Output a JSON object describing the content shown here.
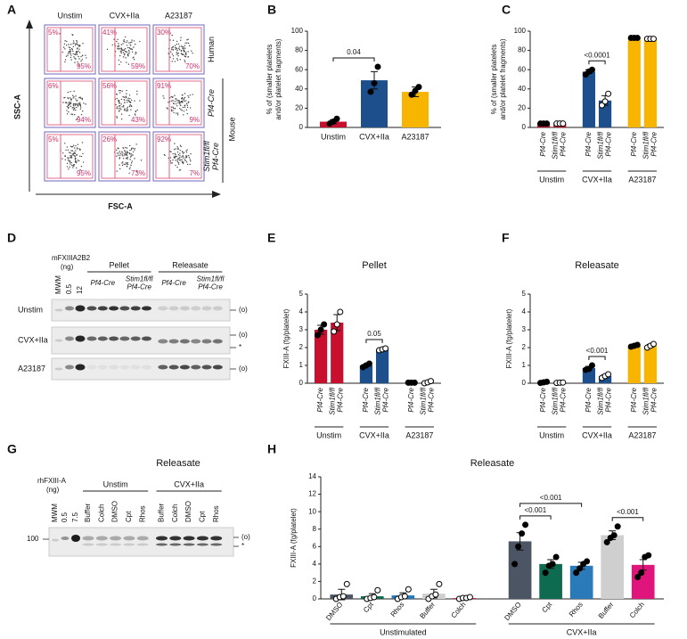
{
  "flow": {
    "letter": "A",
    "columns": [
      "Unstim",
      "CVX+IIa",
      "A23187"
    ],
    "rows": [
      "Human",
      "Pf4-Cre",
      "Stim1fl/fl Pf4-Cre"
    ],
    "row_group": "Mouse",
    "y_axis": "SSC-A",
    "x_axis": "FSC-A",
    "cells": [
      [
        [
          "5%",
          "95%"
        ],
        [
          "41%",
          "59%"
        ],
        [
          "30%",
          "70%"
        ]
      ],
      [
        [
          "6%",
          "94%"
        ],
        [
          "56%",
          "43%"
        ],
        [
          "91%",
          "9%"
        ]
      ],
      [
        [
          "5%",
          "95%"
        ],
        [
          "26%",
          "73%"
        ],
        [
          "92%",
          "7%"
        ]
      ]
    ]
  },
  "chart_data": [
    {
      "letter": "B",
      "type": "bar",
      "ylabel": [
        "% of (smaller platelets",
        "and/or platelet fragments)"
      ],
      "categories": [
        "Unstim",
        "CVX+IIa",
        "A23187"
      ],
      "values": [
        6,
        49,
        37
      ],
      "errors": [
        2,
        9,
        5
      ],
      "points": [
        [
          4,
          6,
          9
        ],
        [
          37,
          46,
          63
        ],
        [
          34,
          38,
          42
        ]
      ],
      "colors": [
        "#c8102e",
        "#1c4f8c",
        "#f7b500"
      ],
      "point_colors": [
        "#000000",
        "#000000",
        "#000000"
      ],
      "ylim": [
        0,
        100
      ],
      "yticks": [
        0,
        20,
        40,
        60,
        80,
        100
      ],
      "comparisons": [
        {
          "label": "0.04",
          "pair": [
            0,
            1
          ]
        }
      ]
    },
    {
      "letter": "C",
      "type": "bar",
      "ylabel": [
        "% of (smaller platelets",
        "and/or platelet fragments)"
      ],
      "categories": [
        "Pf4-Cre",
        "Stim1fl/fl Pf4-Cre",
        "Pf4-Cre",
        "Stim1fl/fl Pf4-Cre",
        "Pf4-Cre",
        "Stim1fl/fl Pf4-Cre"
      ],
      "groups": [
        "Unstim",
        "CVX+IIa",
        "A23187"
      ],
      "values": [
        4,
        4,
        58,
        28,
        93,
        92
      ],
      "errors": [
        0.5,
        0.5,
        2,
        5,
        0.5,
        0.5
      ],
      "points": [
        [
          4,
          4,
          4
        ],
        [
          4,
          4,
          4
        ],
        [
          55,
          58,
          60
        ],
        [
          23,
          27,
          35
        ],
        [
          93,
          93,
          93
        ],
        [
          92,
          92,
          92
        ]
      ],
      "colors": [
        "#c8102e",
        "#c8102e",
        "#1c4f8c",
        "#1c4f8c",
        "#f7b500",
        "#f7b500"
      ],
      "point_colors": [
        "#000000",
        "#ffffff",
        "#000000",
        "#ffffff",
        "#000000",
        "#ffffff"
      ],
      "ylim": [
        0,
        100
      ],
      "yticks": [
        0,
        20,
        40,
        60,
        80,
        100
      ],
      "comparisons": [
        {
          "label": "<0.0001",
          "pair": [
            2,
            3
          ]
        }
      ]
    },
    {
      "letter": "E",
      "type": "bar",
      "title": "Pellet",
      "ylabel": [
        "FXIII-A (fg/platelet)"
      ],
      "categories": [
        "Pf4-Cre",
        "Stim1fl/fl Pf4-Cre",
        "Pf4-Cre",
        "Stim1fl/fl Pf4-Cre",
        "Pf4-Cre",
        "Stim1fl/fl Pf4-Cre"
      ],
      "groups": [
        "Unstim",
        "CVX+IIa",
        "A23187"
      ],
      "values": [
        3.0,
        3.4,
        1.0,
        1.9,
        0.03,
        0.05
      ],
      "errors": [
        0.25,
        0.45,
        0.06,
        0.05,
        0.02,
        0.05
      ],
      "points": [
        [
          2.7,
          3.0,
          3.3
        ],
        [
          2.9,
          3.3,
          4.0
        ],
        [
          0.9,
          1.0,
          1.1
        ],
        [
          1.85,
          1.9,
          1.95
        ],
        [
          0.03,
          0.03,
          0.03
        ],
        [
          0.0,
          0.05,
          0.12
        ]
      ],
      "colors": [
        "#c8102e",
        "#c8102e",
        "#1c4f8c",
        "#1c4f8c",
        "#c8102e",
        "#1c4f8c"
      ],
      "point_colors": [
        "#000000",
        "#ffffff",
        "#000000",
        "#ffffff",
        "#000000",
        "#ffffff"
      ],
      "ylim": [
        0,
        5
      ],
      "yticks": [
        0,
        1,
        2,
        3,
        4,
        5
      ],
      "comparisons": [
        {
          "label": "0.05",
          "pair": [
            2,
            3
          ]
        }
      ]
    },
    {
      "letter": "F",
      "type": "bar",
      "title": "Releasate",
      "ylabel": [
        "FXIII-A (fg/platelet)"
      ],
      "categories": [
        "Pf4-Cre",
        "Stim1fl/fl Pf4-Cre",
        "Pf4-Cre",
        "Stim1fl/fl Pf4-Cre",
        "Pf4-Cre",
        "Stim1fl/fl Pf4-Cre"
      ],
      "groups": [
        "Unstim",
        "CVX+IIa",
        "A23187"
      ],
      "values": [
        0.05,
        0.03,
        0.85,
        0.4,
        2.1,
        2.1
      ],
      "errors": [
        0.03,
        0.02,
        0.1,
        0.07,
        0.04,
        0.08
      ],
      "points": [
        [
          0.02,
          0.05,
          0.08
        ],
        [
          0.02,
          0.03,
          0.04
        ],
        [
          0.75,
          0.8,
          1.0
        ],
        [
          0.3,
          0.4,
          0.5
        ],
        [
          2.05,
          2.1,
          2.15
        ],
        [
          2.0,
          2.1,
          2.2
        ]
      ],
      "colors": [
        "#c8102e",
        "#c8102e",
        "#1c4f8c",
        "#1c4f8c",
        "#f7b500",
        "#f7b500"
      ],
      "point_colors": [
        "#000000",
        "#ffffff",
        "#000000",
        "#ffffff",
        "#000000",
        "#ffffff"
      ],
      "ylim": [
        0,
        5
      ],
      "yticks": [
        0,
        1,
        2,
        3,
        4,
        5
      ],
      "comparisons": [
        {
          "label": "<0.001",
          "pair": [
            2,
            3
          ]
        }
      ]
    },
    {
      "letter": "H",
      "type": "bar",
      "title": "Releasate",
      "ylabel": [
        "FXIII-A (fg/platelet)"
      ],
      "categories": [
        "DMSO",
        "Cpt",
        "Rhos",
        "Buffer",
        "Colch",
        "DMSO",
        "Cpt",
        "Rhos",
        "Buffer",
        "Colch"
      ],
      "groups": [
        "Unstimulated",
        "CVX+IIa"
      ],
      "values": [
        0.5,
        0.3,
        0.4,
        0.6,
        0.1,
        6.6,
        4.0,
        3.8,
        7.3,
        3.9
      ],
      "errors": [
        0.6,
        0.3,
        0.3,
        0.5,
        0.1,
        1.0,
        0.5,
        0.4,
        0.5,
        0.6
      ],
      "points": [
        [
          0,
          0.2,
          0.3,
          1.7
        ],
        [
          0,
          0.1,
          0.2,
          1.0
        ],
        [
          0,
          0.2,
          0.3,
          1.1
        ],
        [
          0,
          0.3,
          0.5,
          1.7
        ],
        [
          0,
          0.1,
          0.1,
          0.2
        ],
        [
          4.0,
          6.0,
          7.5,
          8.5
        ],
        [
          3.0,
          3.8,
          4.0,
          4.8
        ],
        [
          3.0,
          3.5,
          4.0,
          4.3
        ],
        [
          6.5,
          7.0,
          7.3,
          8.3
        ],
        [
          2.5,
          3.0,
          4.8,
          5.0
        ]
      ],
      "colors": [
        "#4b5563",
        "#0f6b4f",
        "#2a7ab9",
        "#cfcfcf",
        "#e0157b",
        "#4b5563",
        "#0f6b4f",
        "#2a7ab9",
        "#cfcfcf",
        "#e0157b"
      ],
      "point_colors": [
        "#ffffff",
        "#ffffff",
        "#ffffff",
        "#ffffff",
        "#ffffff",
        "#000000",
        "#000000",
        "#000000",
        "#000000",
        "#000000"
      ],
      "ylim": [
        0,
        14
      ],
      "yticks": [
        0,
        2,
        4,
        6,
        8,
        10,
        12,
        14
      ],
      "comparisons": [
        {
          "label": "<0.001",
          "pair": [
            5,
            6
          ]
        },
        {
          "label": "<0.001",
          "pair": [
            5,
            7
          ]
        },
        {
          "label": "<0.001",
          "pair": [
            8,
            9
          ]
        }
      ]
    }
  ],
  "blot_d": {
    "letter": "D",
    "standard": "mFXIIIA2B2",
    "standard_unit": "(ng)",
    "lanes": [
      "MWM",
      "0.5",
      "12"
    ],
    "sections": [
      "Pellet",
      "Releasate"
    ],
    "genotypes": [
      "Pf4-Cre",
      "Stim1fl/fl Pf4-Cre",
      "Pf4-Cre",
      "Stim1fl/fl Pf4-Cre"
    ],
    "rows": [
      "Unstim",
      "CVX+IIa",
      "A23187"
    ],
    "markers": [
      "(o)",
      "(o)",
      "*",
      "(o)"
    ]
  },
  "blot_g": {
    "letter": "G",
    "title": "Releasate",
    "standard": "rhFXIII-A",
    "standard_unit": "(ng)",
    "lanes": [
      "MWM",
      "0.5",
      "7.5"
    ],
    "sections": [
      "Unstim",
      "CVX+IIa"
    ],
    "treatments": [
      "Buffer",
      "Colch",
      "DMSO",
      "Cpt",
      "Rhos",
      "Buffer",
      "Colch",
      "DMSO",
      "Cpt",
      "Rhos"
    ],
    "size": "100",
    "markers": [
      "(o)",
      "*"
    ]
  }
}
